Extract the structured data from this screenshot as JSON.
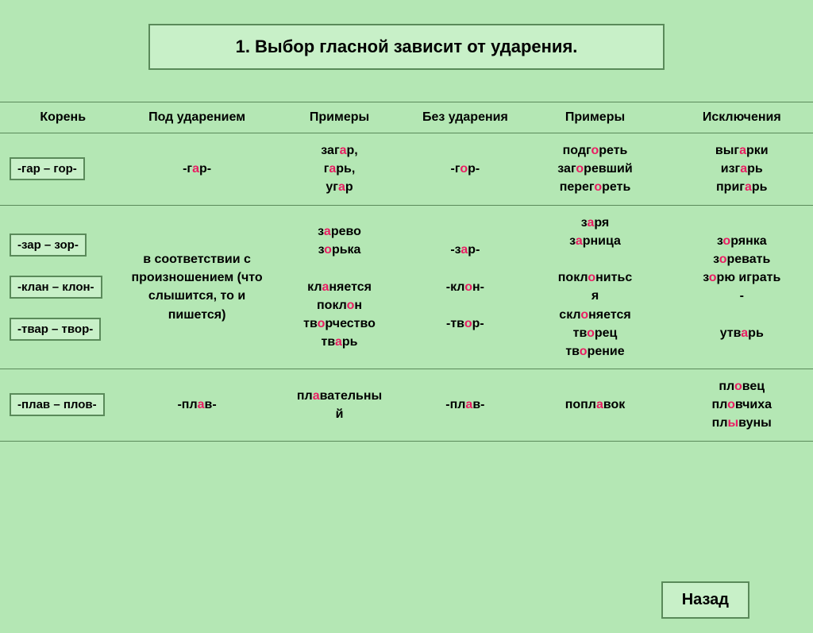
{
  "title": "1. Выбор гласной зависит от ударения.",
  "headers": {
    "root": "Корень",
    "stressed": "Под ударением",
    "ex1": "Примеры",
    "unstressed": "Без ударения",
    "ex2": "Примеры",
    "exceptions": "Исключения"
  },
  "back": "Назад",
  "colors": {
    "bg": "#b4e7b4",
    "box_bg": "#c8f0c8",
    "border": "#5a8a5a",
    "highlight": "#e91e63",
    "text": "#000000"
  },
  "roots": {
    "gar": "-гар – гор-",
    "zar": "-зар – зор-",
    "klan": "-клан – клон-",
    "tvar": "-твар – твор-",
    "plav": "-плав – плов-"
  },
  "rows": {
    "r1": {
      "stressed": {
        "pre": "-г",
        "hl": "а",
        "post": "р-"
      },
      "ex1": [
        {
          "pre": "заг",
          "hl": "а",
          "post": "р,"
        },
        {
          "pre": "г",
          "hl": "а",
          "post": "рь,"
        },
        {
          "pre": "уг",
          "hl": "а",
          "post": "р"
        }
      ],
      "unstressed": {
        "pre": "-г",
        "hl": "о",
        "post": "р-"
      },
      "ex2": [
        {
          "pre": "подг",
          "hl": "о",
          "post": "реть"
        },
        {
          "pre": "заг",
          "hl": "о",
          "post": "ревший"
        },
        {
          "pre": "перег",
          "hl": "о",
          "post": "реть"
        }
      ],
      "exc": [
        {
          "pre": "выг",
          "hl": "а",
          "post": "рки"
        },
        {
          "pre": "изг",
          "hl": "а",
          "post": "рь"
        },
        {
          "pre": "приг",
          "hl": "а",
          "post": "рь"
        }
      ]
    },
    "r2": {
      "stressed_text": "в соответствии с произношением (что слышится, то и пишется)",
      "ex1": [
        {
          "pre": "з",
          "hl": "а",
          "post": "рево"
        },
        {
          "pre": "з",
          "hl": "о",
          "post": "рька"
        },
        {
          "plain": " "
        },
        {
          "pre": "кл",
          "hl": "а",
          "post": "няется"
        },
        {
          "pre": "покл",
          "hl": "о",
          "post": "н"
        },
        {
          "pre": "тв",
          "hl": "о",
          "post": "рчество"
        },
        {
          "pre": "тв",
          "hl": "а",
          "post": "рь"
        }
      ],
      "unstressed": [
        {
          "pre": "-з",
          "hl": "а",
          "post": "р-"
        },
        {
          "plain": " "
        },
        {
          "pre": "-кл",
          "hl": "о",
          "post": "н-"
        },
        {
          "plain": " "
        },
        {
          "pre": "-тв",
          "hl": "о",
          "post": "р-"
        }
      ],
      "ex2": [
        {
          "pre": "з",
          "hl": "а",
          "post": "ря"
        },
        {
          "pre": "з",
          "hl": "а",
          "post": "рница"
        },
        {
          "plain": " "
        },
        {
          "pre": "покл",
          "hl": "о",
          "post": "нитьс"
        },
        {
          "plain": "я"
        },
        {
          "pre": "скл",
          "hl": "о",
          "post": "няется"
        },
        {
          "pre": "тв",
          "hl": "о",
          "post": "рец"
        },
        {
          "pre": "тв",
          "hl": "о",
          "post": "рение"
        }
      ],
      "exc": [
        {
          "pre": "з",
          "hl": "о",
          "post": "рянка"
        },
        {
          "pre": "з",
          "hl": "о",
          "post": "ревать"
        },
        {
          "pre": "з",
          "hl": "о",
          "post": "рю играть"
        },
        {
          "plain": "-"
        },
        {
          "plain": " "
        },
        {
          "pre": "утв",
          "hl": "а",
          "post": "рь"
        }
      ]
    },
    "r3": {
      "stressed": {
        "pre": "-пл",
        "hl": "а",
        "post": "в-"
      },
      "ex1": [
        {
          "pre": "пл",
          "hl": "а",
          "post": "вательны"
        },
        {
          "plain": "й"
        }
      ],
      "unstressed": {
        "pre": "-пл",
        "hl": "а",
        "post": "в-"
      },
      "ex2": [
        {
          "pre": "попл",
          "hl": "а",
          "post": "вок"
        }
      ],
      "exc": [
        {
          "pre": "пл",
          "hl": "о",
          "post": "вец"
        },
        {
          "pre": "пл",
          "hl": "о",
          "post": "вчиха"
        },
        {
          "pre": "пл",
          "hl": "ы",
          "post": "вуны"
        }
      ]
    }
  }
}
